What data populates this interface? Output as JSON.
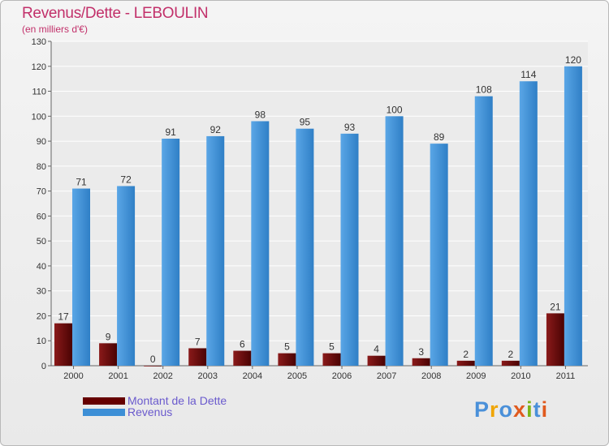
{
  "title": "Revenus/Dette - LEBOULIN",
  "subtitle": "(en milliers d'€)",
  "colors": {
    "debt": "#6b0a0a",
    "revenue": "#3d8fd6",
    "title": "#c2306a",
    "legend_text": "#6a5acd"
  },
  "legend": {
    "debt_label": "Montant de la Dette",
    "revenue_label": "Revenus"
  },
  "logo": {
    "text": "Proxiti"
  },
  "chart_data": {
    "type": "bar",
    "title": "Revenus/Dette - LEBOULIN",
    "ylabel": "(en milliers d'€)",
    "xlabel": "",
    "ylim": [
      0,
      130
    ],
    "yticks": [
      0,
      10,
      20,
      30,
      40,
      50,
      60,
      70,
      80,
      90,
      100,
      110,
      120,
      130
    ],
    "categories": [
      "2000",
      "2001",
      "2002",
      "2003",
      "2004",
      "2005",
      "2006",
      "2007",
      "2008",
      "2009",
      "2010",
      "2011"
    ],
    "series": [
      {
        "name": "Montant de la Dette",
        "values": [
          17,
          9,
          0,
          7,
          6,
          5,
          5,
          4,
          3,
          2,
          2,
          21
        ]
      },
      {
        "name": "Revenus",
        "values": [
          71,
          72,
          91,
          92,
          98,
          95,
          93,
          100,
          89,
          108,
          114,
          120
        ]
      }
    ]
  }
}
